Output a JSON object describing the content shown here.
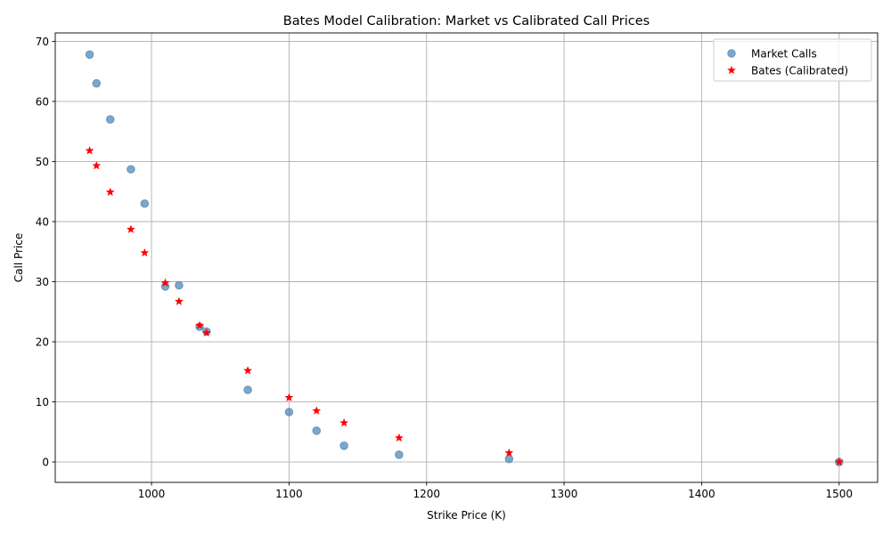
{
  "chart_data": {
    "type": "scatter",
    "title": "Bates Model Calibration: Market vs Calibrated Call Prices",
    "xlabel": "Strike Price (K)",
    "ylabel": "Call Price",
    "xlim": [
      930,
      1528
    ],
    "ylim": [
      -3.4,
      71.4
    ],
    "xticks": [
      1000,
      1100,
      1200,
      1300,
      1400,
      1500
    ],
    "yticks": [
      0,
      10,
      20,
      30,
      40,
      50,
      60,
      70
    ],
    "grid": true,
    "legend_position": "top-right",
    "series": [
      {
        "name": "Market Calls",
        "marker": "circle",
        "color": "#4682b4",
        "points": [
          {
            "x": 955,
            "y": 67.8
          },
          {
            "x": 960,
            "y": 63.0
          },
          {
            "x": 970,
            "y": 57.0
          },
          {
            "x": 985,
            "y": 48.7
          },
          {
            "x": 995,
            "y": 43.0
          },
          {
            "x": 1010,
            "y": 29.2
          },
          {
            "x": 1020,
            "y": 29.4
          },
          {
            "x": 1035,
            "y": 22.5
          },
          {
            "x": 1040,
            "y": 21.7
          },
          {
            "x": 1070,
            "y": 12.0
          },
          {
            "x": 1100,
            "y": 8.3
          },
          {
            "x": 1120,
            "y": 5.2
          },
          {
            "x": 1140,
            "y": 2.7
          },
          {
            "x": 1180,
            "y": 1.2
          },
          {
            "x": 1260,
            "y": 0.5
          },
          {
            "x": 1500,
            "y": 0.0
          }
        ]
      },
      {
        "name": "Bates (Calibrated)",
        "marker": "star",
        "color": "#ff0000",
        "points": [
          {
            "x": 955,
            "y": 51.8
          },
          {
            "x": 960,
            "y": 49.3
          },
          {
            "x": 970,
            "y": 44.9
          },
          {
            "x": 985,
            "y": 38.7
          },
          {
            "x": 995,
            "y": 34.8
          },
          {
            "x": 1010,
            "y": 29.8
          },
          {
            "x": 1020,
            "y": 26.7
          },
          {
            "x": 1035,
            "y": 22.7
          },
          {
            "x": 1040,
            "y": 21.5
          },
          {
            "x": 1070,
            "y": 15.2
          },
          {
            "x": 1100,
            "y": 10.7
          },
          {
            "x": 1120,
            "y": 8.5
          },
          {
            "x": 1140,
            "y": 6.5
          },
          {
            "x": 1180,
            "y": 4.0
          },
          {
            "x": 1260,
            "y": 1.5
          },
          {
            "x": 1500,
            "y": 0.0
          }
        ]
      }
    ]
  }
}
